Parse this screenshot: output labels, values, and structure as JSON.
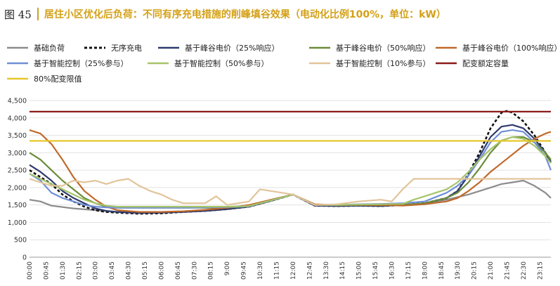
{
  "header": {
    "figure_number": "图 45",
    "title": "居住小区优化后负荷：不同有序充电措施的削峰填谷效果（电动化比例100%，单位：kW）"
  },
  "chart_data": {
    "type": "line",
    "title": "居住小区优化后负荷：不同有序充电措施的削峰填谷效果（电动化比例100%，单位：kW）",
    "xlabel": "",
    "ylabel": "",
    "ylim": [
      0,
      4500
    ],
    "yticks": [
      0,
      500,
      1000,
      1500,
      2000,
      2500,
      3000,
      3500,
      4000,
      4500
    ],
    "ytick_labels": [
      "0",
      "500",
      "1,000",
      "1,500",
      "2,000",
      "2,500",
      "3,000",
      "3,500",
      "4,000",
      "4,500"
    ],
    "xtick_labels": [
      "00:00",
      "00:45",
      "01:30",
      "02:15",
      "03:00",
      "03:45",
      "04:30",
      "05:15",
      "06:00",
      "06:45",
      "07:30",
      "08:15",
      "9:00",
      "09:45",
      "10:30",
      "11:15",
      "12:00",
      "12:45",
      "13:30",
      "14:15",
      "15:00",
      "15:45",
      "16:30",
      "17:15",
      "18:00",
      "18:45",
      "19:30",
      "20:15",
      "21:00",
      "21:45",
      "22:30",
      "23:15"
    ],
    "grid": "horizontal",
    "legend_position": "top",
    "x_slots": 96,
    "series": [
      {
        "name": "基础负荷",
        "color": "#8c8c8c",
        "style": "solid",
        "values": [
          [
            0,
            1650
          ],
          [
            2,
            1600
          ],
          [
            4,
            1480
          ],
          [
            8,
            1400
          ],
          [
            12,
            1350
          ],
          [
            16,
            1300
          ],
          [
            20,
            1270
          ],
          [
            24,
            1280
          ],
          [
            28,
            1300
          ],
          [
            32,
            1330
          ],
          [
            36,
            1380
          ],
          [
            40,
            1450
          ],
          [
            44,
            1620
          ],
          [
            48,
            1800
          ],
          [
            52,
            1480
          ],
          [
            56,
            1470
          ],
          [
            60,
            1480
          ],
          [
            64,
            1470
          ],
          [
            68,
            1500
          ],
          [
            72,
            1550
          ],
          [
            76,
            1650
          ],
          [
            80,
            1800
          ],
          [
            84,
            2000
          ],
          [
            86,
            2100
          ],
          [
            88,
            2150
          ],
          [
            90,
            2200
          ],
          [
            92,
            2050
          ],
          [
            94,
            1850
          ],
          [
            95,
            1700
          ]
        ]
      },
      {
        "name": "无序充电",
        "color": "#111111",
        "style": "dash",
        "values": [
          [
            0,
            2500
          ],
          [
            2,
            2300
          ],
          [
            4,
            2100
          ],
          [
            6,
            1800
          ],
          [
            8,
            1600
          ],
          [
            10,
            1450
          ],
          [
            12,
            1350
          ],
          [
            14,
            1300
          ],
          [
            16,
            1280
          ],
          [
            20,
            1250
          ],
          [
            24,
            1260
          ],
          [
            28,
            1300
          ],
          [
            32,
            1330
          ],
          [
            36,
            1380
          ],
          [
            40,
            1450
          ],
          [
            44,
            1620
          ],
          [
            48,
            1800
          ],
          [
            52,
            1480
          ],
          [
            56,
            1470
          ],
          [
            60,
            1480
          ],
          [
            64,
            1470
          ],
          [
            68,
            1500
          ],
          [
            72,
            1550
          ],
          [
            76,
            1700
          ],
          [
            78,
            1900
          ],
          [
            80,
            2400
          ],
          [
            82,
            3000
          ],
          [
            84,
            3700
          ],
          [
            86,
            4150
          ],
          [
            87,
            4200
          ],
          [
            88,
            4150
          ],
          [
            90,
            3900
          ],
          [
            92,
            3500
          ],
          [
            94,
            3000
          ],
          [
            95,
            2700
          ]
        ]
      },
      {
        "name": "基于峰谷电价（25%响应）",
        "color": "#2e3a6e",
        "style": "solid",
        "values": [
          [
            0,
            2650
          ],
          [
            2,
            2450
          ],
          [
            4,
            2200
          ],
          [
            6,
            1900
          ],
          [
            8,
            1700
          ],
          [
            10,
            1550
          ],
          [
            12,
            1400
          ],
          [
            14,
            1330
          ],
          [
            16,
            1300
          ],
          [
            20,
            1270
          ],
          [
            24,
            1280
          ],
          [
            28,
            1300
          ],
          [
            32,
            1330
          ],
          [
            36,
            1380
          ],
          [
            40,
            1450
          ],
          [
            44,
            1620
          ],
          [
            48,
            1800
          ],
          [
            52,
            1480
          ],
          [
            56,
            1470
          ],
          [
            60,
            1480
          ],
          [
            64,
            1470
          ],
          [
            68,
            1500
          ],
          [
            72,
            1550
          ],
          [
            76,
            1700
          ],
          [
            78,
            1900
          ],
          [
            80,
            2350
          ],
          [
            82,
            2900
          ],
          [
            84,
            3450
          ],
          [
            86,
            3750
          ],
          [
            88,
            3800
          ],
          [
            90,
            3700
          ],
          [
            92,
            3400
          ],
          [
            94,
            3000
          ],
          [
            95,
            2750
          ]
        ]
      },
      {
        "name": "基于峰谷电价（50%响应）",
        "color": "#6b8c3a",
        "style": "solid",
        "values": [
          [
            0,
            3000
          ],
          [
            2,
            2800
          ],
          [
            4,
            2500
          ],
          [
            6,
            2200
          ],
          [
            8,
            1950
          ],
          [
            10,
            1700
          ],
          [
            12,
            1550
          ],
          [
            14,
            1450
          ],
          [
            16,
            1420
          ],
          [
            20,
            1420
          ],
          [
            24,
            1420
          ],
          [
            28,
            1420
          ],
          [
            32,
            1420
          ],
          [
            36,
            1420
          ],
          [
            40,
            1460
          ],
          [
            44,
            1630
          ],
          [
            48,
            1800
          ],
          [
            52,
            1500
          ],
          [
            56,
            1490
          ],
          [
            60,
            1500
          ],
          [
            64,
            1490
          ],
          [
            68,
            1500
          ],
          [
            72,
            1550
          ],
          [
            76,
            1700
          ],
          [
            78,
            1850
          ],
          [
            80,
            2150
          ],
          [
            82,
            2550
          ],
          [
            84,
            3000
          ],
          [
            86,
            3350
          ],
          [
            88,
            3450
          ],
          [
            90,
            3450
          ],
          [
            92,
            3300
          ],
          [
            94,
            3000
          ],
          [
            95,
            2800
          ]
        ]
      },
      {
        "name": "基于峰谷电价（100%响应）",
        "color": "#c0692a",
        "style": "solid",
        "values": [
          [
            0,
            3650
          ],
          [
            2,
            3550
          ],
          [
            4,
            3250
          ],
          [
            6,
            2800
          ],
          [
            8,
            2300
          ],
          [
            10,
            1900
          ],
          [
            12,
            1650
          ],
          [
            14,
            1450
          ],
          [
            16,
            1350
          ],
          [
            20,
            1300
          ],
          [
            24,
            1300
          ],
          [
            28,
            1320
          ],
          [
            32,
            1360
          ],
          [
            36,
            1420
          ],
          [
            40,
            1500
          ],
          [
            44,
            1650
          ],
          [
            48,
            1800
          ],
          [
            52,
            1520
          ],
          [
            56,
            1500
          ],
          [
            60,
            1500
          ],
          [
            64,
            1500
          ],
          [
            68,
            1480
          ],
          [
            72,
            1520
          ],
          [
            76,
            1600
          ],
          [
            78,
            1700
          ],
          [
            80,
            1900
          ],
          [
            82,
            2150
          ],
          [
            84,
            2450
          ],
          [
            86,
            2700
          ],
          [
            88,
            2950
          ],
          [
            90,
            3200
          ],
          [
            92,
            3400
          ],
          [
            94,
            3550
          ],
          [
            95,
            3600
          ]
        ]
      },
      {
        "name": "基于智能控制（25%参与）",
        "color": "#6f8fd6",
        "style": "solid",
        "values": [
          [
            0,
            2400
          ],
          [
            2,
            2200
          ],
          [
            4,
            1850
          ],
          [
            6,
            1700
          ],
          [
            8,
            1600
          ],
          [
            10,
            1500
          ],
          [
            12,
            1450
          ],
          [
            14,
            1430
          ],
          [
            16,
            1420
          ],
          [
            20,
            1420
          ],
          [
            24,
            1420
          ],
          [
            28,
            1420
          ],
          [
            32,
            1430
          ],
          [
            36,
            1440
          ],
          [
            40,
            1460
          ],
          [
            44,
            1630
          ],
          [
            48,
            1800
          ],
          [
            52,
            1500
          ],
          [
            56,
            1500
          ],
          [
            60,
            1520
          ],
          [
            64,
            1530
          ],
          [
            68,
            1550
          ],
          [
            72,
            1600
          ],
          [
            76,
            1850
          ],
          [
            78,
            2050
          ],
          [
            80,
            2350
          ],
          [
            82,
            2800
          ],
          [
            84,
            3300
          ],
          [
            86,
            3600
          ],
          [
            88,
            3650
          ],
          [
            90,
            3600
          ],
          [
            92,
            3300
          ],
          [
            94,
            2900
          ],
          [
            95,
            2500
          ]
        ]
      },
      {
        "name": "基于智能控制（50%参与）",
        "color": "#a6c46a",
        "style": "solid",
        "values": [
          [
            0,
            2400
          ],
          [
            2,
            2250
          ],
          [
            4,
            2100
          ],
          [
            6,
            1950
          ],
          [
            8,
            1800
          ],
          [
            10,
            1650
          ],
          [
            12,
            1550
          ],
          [
            14,
            1480
          ],
          [
            16,
            1450
          ],
          [
            20,
            1450
          ],
          [
            24,
            1450
          ],
          [
            28,
            1450
          ],
          [
            32,
            1450
          ],
          [
            36,
            1450
          ],
          [
            40,
            1470
          ],
          [
            44,
            1630
          ],
          [
            48,
            1800
          ],
          [
            52,
            1500
          ],
          [
            56,
            1500
          ],
          [
            60,
            1510
          ],
          [
            64,
            1520
          ],
          [
            68,
            1530
          ],
          [
            70,
            1650
          ],
          [
            72,
            1750
          ],
          [
            74,
            1850
          ],
          [
            76,
            1950
          ],
          [
            78,
            2150
          ],
          [
            80,
            2450
          ],
          [
            82,
            2800
          ],
          [
            84,
            3100
          ],
          [
            86,
            3350
          ],
          [
            88,
            3450
          ],
          [
            90,
            3400
          ],
          [
            92,
            3200
          ],
          [
            94,
            2900
          ],
          [
            95,
            2700
          ]
        ]
      },
      {
        "name": "基于智能控制（10%参与）",
        "color": "#e2c49a",
        "style": "solid",
        "values": [
          [
            0,
            2250
          ],
          [
            2,
            2150
          ],
          [
            4,
            2050
          ],
          [
            6,
            2050
          ],
          [
            8,
            2200
          ],
          [
            10,
            2150
          ],
          [
            12,
            2200
          ],
          [
            14,
            2100
          ],
          [
            16,
            2200
          ],
          [
            18,
            2250
          ],
          [
            20,
            2050
          ],
          [
            22,
            1900
          ],
          [
            24,
            1800
          ],
          [
            26,
            1650
          ],
          [
            28,
            1550
          ],
          [
            32,
            1550
          ],
          [
            34,
            1750
          ],
          [
            36,
            1500
          ],
          [
            40,
            1600
          ],
          [
            42,
            1950
          ],
          [
            44,
            1900
          ],
          [
            48,
            1800
          ],
          [
            52,
            1500
          ],
          [
            56,
            1520
          ],
          [
            60,
            1600
          ],
          [
            64,
            1650
          ],
          [
            66,
            1600
          ],
          [
            68,
            1950
          ],
          [
            70,
            2250
          ],
          [
            72,
            2250
          ],
          [
            76,
            2250
          ],
          [
            80,
            2250
          ],
          [
            84,
            2250
          ],
          [
            88,
            2250
          ],
          [
            92,
            2250
          ],
          [
            95,
            2250
          ]
        ]
      },
      {
        "name": "配变额定容量",
        "color": "#8b1a1a",
        "style": "solid",
        "values": [
          [
            0,
            4180
          ],
          [
            95,
            4180
          ]
        ]
      },
      {
        "name": "80%配变限值",
        "color": "#e6c62a",
        "style": "solid",
        "values": [
          [
            0,
            3340
          ],
          [
            95,
            3340
          ]
        ]
      }
    ]
  }
}
